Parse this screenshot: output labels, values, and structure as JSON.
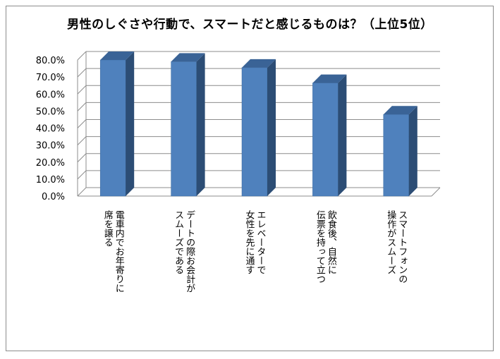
{
  "chart_data": {
    "type": "bar",
    "title": "男性のしぐさや行動で、スマートだと感じるものは？（上位5位）",
    "xlabel": "",
    "ylabel": "",
    "ylim": [
      0,
      0.8
    ],
    "yticks": [
      "0.0%",
      "10.0%",
      "20.0%",
      "30.0%",
      "40.0%",
      "50.0%",
      "60.0%",
      "70.0%",
      "80.0%"
    ],
    "categories": [
      [
        "電車内でお年寄りに",
        "席を譲る"
      ],
      [
        "デートの際お会計が",
        "スムーズである"
      ],
      [
        "エレベーターで",
        "女性を先に通す"
      ],
      [
        "飲食後、自然に",
        "伝票を持って立つ"
      ],
      [
        "スマートフォンの",
        "操作がスムーズ"
      ]
    ],
    "values": [
      0.8,
      0.79,
      0.755,
      0.665,
      0.48
    ],
    "grid": true,
    "legend": "none",
    "colors": {
      "bar_front": "#4f81bd",
      "bar_side": "#2c4d75",
      "bar_top": "#3a6396",
      "grid": "#8c8c8c"
    }
  }
}
